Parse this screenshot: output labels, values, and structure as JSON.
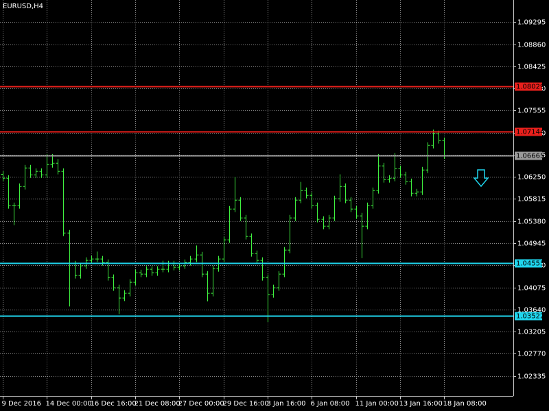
{
  "chart_data": {
    "type": "ohlc",
    "title": "EURUSD,H4",
    "color": "#3ff03f",
    "grid": true,
    "xlim": [
      -0.5,
      92.5
    ],
    "ylim": [
      1.0194,
      1.0973
    ],
    "xticks": [
      {
        "value": 0,
        "label": "9 Dec 2016"
      },
      {
        "value": 8,
        "label": "14 Dec 00:00"
      },
      {
        "value": 16,
        "label": "16 Dec 16:00"
      },
      {
        "value": 24,
        "label": "21 Dec 08:00"
      },
      {
        "value": 32,
        "label": "27 Dec 00:00"
      },
      {
        "value": 40,
        "label": "29 Dec 16:00"
      },
      {
        "value": 48,
        "label": "3 Jan 16:00"
      },
      {
        "value": 56,
        "label": "6 Jan 08:00"
      },
      {
        "value": 64,
        "label": "11 Jan 00:00"
      },
      {
        "value": 72,
        "label": "13 Jan 16:00"
      },
      {
        "value": 80,
        "label": "18 Jan 08:00"
      }
    ],
    "yticks": [
      1.09295,
      {
        "value": 1.0886,
        "label": "1.08860"
      },
      1.08425,
      {
        "value": 1.0799,
        "label": "1.07990"
      },
      1.07555,
      {
        "value": 1.0712,
        "label": "1.07120"
      },
      1.06685,
      {
        "value": 1.0625,
        "label": "1.06250"
      },
      1.05815,
      {
        "value": 1.0538,
        "label": "1.05380"
      },
      1.04945,
      {
        "value": 1.0451,
        "label": "1.04510"
      },
      1.04075,
      {
        "value": 1.0364,
        "label": "1.03640"
      },
      1.03205,
      {
        "value": 1.0277,
        "label": "1.02770"
      },
      1.02335
    ],
    "levels": [
      {
        "price": 1.08029,
        "color": "#e8201c"
      },
      {
        "price": 1.07144,
        "color": "#e8201c"
      },
      {
        "price": 1.06665,
        "color": "#9a9a9a"
      },
      {
        "price": 1.04555,
        "color": "#1fd6ee"
      },
      {
        "price": 1.03522,
        "color": "#1fd6ee"
      }
    ],
    "open": [
      1.063,
      1.06223,
      1.05684,
      1.05684,
      1.06061,
      1.06425,
      1.0629,
      1.06358,
      1.0629,
      1.06492,
      1.06519,
      1.06358,
      1.05145,
      1.04539,
      1.0431,
      1.04499,
      1.04607,
      1.04634,
      1.04634,
      1.04566,
      1.0427,
      1.04068,
      1.03866,
      1.0396,
      1.04176,
      1.04364,
      1.04337,
      1.04432,
      1.04364,
      1.04432,
      1.04432,
      1.04539,
      1.04472,
      1.04499,
      1.04566,
      1.04634,
      1.04714,
      1.04337,
      1.0396,
      1.04445,
      1.04634,
      1.05011,
      1.05617,
      1.05792,
      1.05442,
      1.05078,
      1.04741,
      1.04607,
      1.0427,
      1.03933,
      1.04068,
      1.04337,
      1.04809,
      1.05442,
      1.05792,
      1.05981,
      1.05886,
      1.05684,
      1.05415,
      1.0528,
      1.05442,
      1.05819,
      1.06061,
      1.05792,
      1.05617,
      1.05482,
      1.0528,
      1.05684,
      1.05981,
      1.06466,
      1.06196,
      1.06223,
      1.06412,
      1.0629,
      1.06156,
      1.05927,
      1.05954,
      1.06385,
      1.0687,
      1.07099,
      1.06964
    ],
    "high": [
      1.0636,
      1.06283,
      1.05744,
      1.06121,
      1.06485,
      1.06485,
      1.06418,
      1.06418,
      1.067,
      1.067,
      1.066,
      1.06418,
      1.05205,
      1.04599,
      1.04559,
      1.04667,
      1.04694,
      1.0478,
      1.04694,
      1.04626,
      1.0433,
      1.04128,
      1.0402,
      1.04236,
      1.04424,
      1.04424,
      1.04492,
      1.04492,
      1.04492,
      1.046,
      1.04599,
      1.04599,
      1.04559,
      1.04626,
      1.04694,
      1.049,
      1.04774,
      1.04397,
      1.04505,
      1.04694,
      1.05071,
      1.05677,
      1.0625,
      1.05852,
      1.05502,
      1.05138,
      1.04801,
      1.04667,
      1.0433,
      1.04128,
      1.04397,
      1.04869,
      1.05502,
      1.05852,
      1.0615,
      1.06041,
      1.05946,
      1.05744,
      1.05475,
      1.05502,
      1.05879,
      1.063,
      1.06121,
      1.05852,
      1.05677,
      1.05542,
      1.05744,
      1.06041,
      1.067,
      1.06526,
      1.06283,
      1.0672,
      1.06472,
      1.0635,
      1.06216,
      1.06014,
      1.06445,
      1.0693,
      1.0718,
      1.07159,
      1.07024
    ],
    "low": [
      1.06163,
      1.05624,
      1.053,
      1.05624,
      1.06001,
      1.0623,
      1.0623,
      1.0623,
      1.0623,
      1.06432,
      1.06298,
      1.05085,
      1.037,
      1.0425,
      1.0425,
      1.04439,
      1.04547,
      1.04574,
      1.04506,
      1.0421,
      1.04008,
      1.0355,
      1.03806,
      1.039,
      1.04116,
      1.04277,
      1.04277,
      1.04304,
      1.04304,
      1.04372,
      1.04372,
      1.04412,
      1.04412,
      1.04439,
      1.04506,
      1.04574,
      1.04277,
      1.038,
      1.039,
      1.04385,
      1.04574,
      1.04951,
      1.05557,
      1.05382,
      1.05018,
      1.04681,
      1.04547,
      1.0421,
      1.03394,
      1.03873,
      1.04008,
      1.04277,
      1.04749,
      1.05382,
      1.05732,
      1.05826,
      1.05624,
      1.05355,
      1.0522,
      1.0522,
      1.05382,
      1.05759,
      1.05732,
      1.05557,
      1.05422,
      1.0465,
      1.0522,
      1.05624,
      1.05921,
      1.06136,
      1.06136,
      1.06163,
      1.0623,
      1.06096,
      1.05867,
      1.05867,
      1.05894,
      1.06325,
      1.0681,
      1.06904,
      1.06605
    ],
    "close": [
      1.06223,
      1.05684,
      1.05684,
      1.06061,
      1.06425,
      1.0629,
      1.06358,
      1.0629,
      1.06492,
      1.06519,
      1.06358,
      1.05145,
      1.04539,
      1.0431,
      1.04499,
      1.04607,
      1.04634,
      1.04634,
      1.04566,
      1.0427,
      1.04068,
      1.03866,
      1.0396,
      1.04176,
      1.04364,
      1.04337,
      1.04432,
      1.04364,
      1.04432,
      1.04432,
      1.04539,
      1.04472,
      1.04499,
      1.04566,
      1.04634,
      1.04714,
      1.04337,
      1.0396,
      1.04445,
      1.04634,
      1.05011,
      1.05617,
      1.05792,
      1.05442,
      1.05078,
      1.04741,
      1.04607,
      1.0427,
      1.03933,
      1.04068,
      1.04337,
      1.04809,
      1.05442,
      1.05792,
      1.05981,
      1.05886,
      1.05684,
      1.05415,
      1.0528,
      1.05442,
      1.05819,
      1.06061,
      1.05792,
      1.05617,
      1.05482,
      1.0528,
      1.05684,
      1.05981,
      1.06466,
      1.06196,
      1.06223,
      1.06412,
      1.0629,
      1.06156,
      1.05927,
      1.05954,
      1.06385,
      1.0687,
      1.07099,
      1.06964,
      1.06665
    ]
  }
}
